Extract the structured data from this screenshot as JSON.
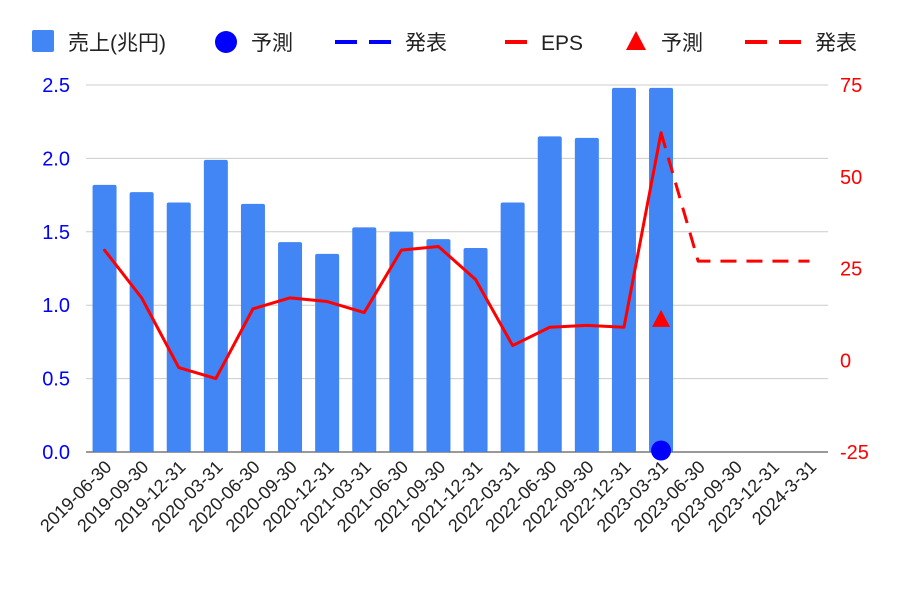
{
  "chart_data": {
    "type": "bar",
    "title": "",
    "categories": [
      "2019-06-30",
      "2019-09-30",
      "2019-12-31",
      "2020-03-31",
      "2020-06-30",
      "2020-09-30",
      "2020-12-31",
      "2021-03-31",
      "2021-06-30",
      "2021-09-30",
      "2021-12-31",
      "2022-03-31",
      "2022-06-30",
      "2022-09-30",
      "2022-12-31",
      "2023-03-31",
      "2023-06-30",
      "2023-09-30",
      "2023-12-31",
      "2024-3-31"
    ],
    "y_left": {
      "ylim": [
        0,
        2.5
      ],
      "ticks": [
        "0.0",
        "0.5",
        "1.0",
        "1.5",
        "2.0",
        "2.5"
      ]
    },
    "y_right": {
      "ylim": [
        -25,
        75
      ],
      "ticks": [
        "-25",
        "0",
        "25",
        "50",
        "75"
      ]
    },
    "grid": true,
    "legend_position": "top",
    "series": [
      {
        "name": "売上(兆円)",
        "kind": "bar",
        "axis": "left",
        "color": "#4285f4",
        "values": [
          1.82,
          1.77,
          1.7,
          1.99,
          1.69,
          1.43,
          1.35,
          1.53,
          1.5,
          1.45,
          1.39,
          1.7,
          2.15,
          2.14,
          2.48,
          2.48,
          null,
          null,
          null,
          null
        ]
      },
      {
        "name": "予測",
        "kind": "marker-circle",
        "axis": "left",
        "color": "#0000ff",
        "values": [
          null,
          null,
          null,
          null,
          null,
          null,
          null,
          null,
          null,
          null,
          null,
          null,
          null,
          null,
          null,
          0.01,
          null,
          null,
          null,
          null
        ]
      },
      {
        "name": "発表",
        "kind": "dashed-line",
        "axis": "left",
        "color": "#0000ff",
        "values": [
          null,
          null,
          null,
          null,
          null,
          null,
          null,
          null,
          null,
          null,
          null,
          null,
          null,
          null,
          null,
          null,
          null,
          null,
          null,
          null
        ]
      },
      {
        "name": "EPS",
        "kind": "line",
        "axis": "right",
        "color": "#ff0000",
        "values": [
          30,
          17,
          -2,
          -5,
          14,
          17,
          16,
          13,
          30,
          31,
          22,
          4,
          9,
          9.5,
          9,
          62,
          null,
          null,
          null,
          null
        ]
      },
      {
        "name": "予測",
        "kind": "marker-triangle",
        "axis": "right",
        "color": "#ff0000",
        "values": [
          null,
          null,
          null,
          null,
          null,
          null,
          null,
          null,
          null,
          null,
          null,
          null,
          null,
          null,
          null,
          11,
          null,
          null,
          null,
          null
        ]
      },
      {
        "name": "発表",
        "kind": "dashed-line",
        "axis": "right",
        "color": "#ff0000",
        "values": [
          null,
          null,
          null,
          null,
          null,
          null,
          null,
          null,
          null,
          null,
          null,
          null,
          null,
          null,
          null,
          62,
          27,
          27,
          27,
          27
        ]
      }
    ]
  }
}
